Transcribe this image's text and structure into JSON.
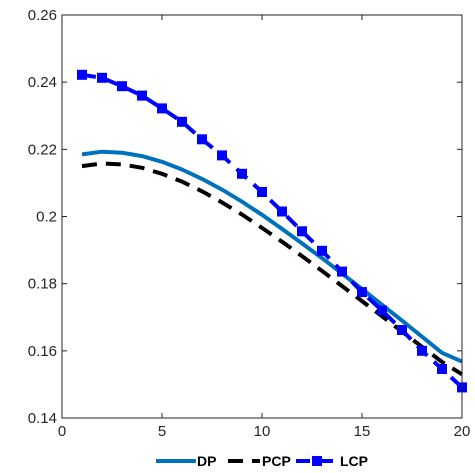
{
  "chart_data": {
    "type": "line",
    "title": "",
    "xlabel": "",
    "ylabel": "",
    "xlim": [
      0,
      20
    ],
    "ylim": [
      0.14,
      0.26
    ],
    "x_ticks": [
      0,
      5,
      10,
      15,
      20
    ],
    "x_tick_labels": [
      "0",
      "5",
      "10",
      "15",
      "20"
    ],
    "y_ticks": [
      0.14,
      0.16,
      0.18,
      0.2,
      0.22,
      0.24,
      0.26
    ],
    "y_tick_labels": [
      "0.14",
      "0.16",
      "0.18",
      "0.2",
      "0.22",
      "0.24",
      "0.26"
    ],
    "grid": false,
    "box": true,
    "legend_position": "bottom",
    "legend_orientation": "horizontal",
    "series": [
      {
        "name": "DP",
        "style": "solid",
        "marker": "none",
        "color": "#0072BD",
        "x": [
          1,
          2,
          3,
          4,
          5,
          6,
          7,
          8,
          9,
          10,
          11,
          12,
          13,
          14,
          15,
          16,
          17,
          18,
          19,
          20
        ],
        "y": [
          0.2185,
          0.2193,
          0.219,
          0.218,
          0.2163,
          0.214,
          0.2112,
          0.208,
          0.2044,
          0.2005,
          0.1963,
          0.192,
          0.1876,
          0.183,
          0.1784,
          0.1737,
          0.169,
          0.1642,
          0.1594,
          0.1568
        ]
      },
      {
        "name": "PCP",
        "style": "dashed",
        "marker": "none",
        "color": "#000000",
        "x": [
          1,
          2,
          3,
          4,
          5,
          6,
          7,
          8,
          9,
          10,
          11,
          12,
          13,
          14,
          15,
          16,
          17,
          18,
          19,
          20
        ],
        "y": [
          0.215,
          0.2158,
          0.2155,
          0.2145,
          0.2127,
          0.2104,
          0.2075,
          0.2042,
          0.2006,
          0.1966,
          0.1925,
          0.1882,
          0.1838,
          0.1793,
          0.1748,
          0.1703,
          0.1657,
          0.1612,
          0.1567,
          0.153
        ]
      },
      {
        "name": "LCP",
        "style": "dashed",
        "marker": "square",
        "color": "#0000FF",
        "x": [
          1,
          2,
          3,
          4,
          5,
          6,
          7,
          8,
          9,
          10,
          11,
          12,
          13,
          14,
          15,
          16,
          17,
          18,
          19,
          20
        ],
        "y": [
          0.2422,
          0.2413,
          0.2388,
          0.236,
          0.2322,
          0.2282,
          0.223,
          0.2182,
          0.2127,
          0.2073,
          0.2015,
          0.1956,
          0.1898,
          0.1836,
          0.1775,
          0.172,
          0.1662,
          0.16,
          0.1546,
          0.1491
        ]
      }
    ]
  }
}
